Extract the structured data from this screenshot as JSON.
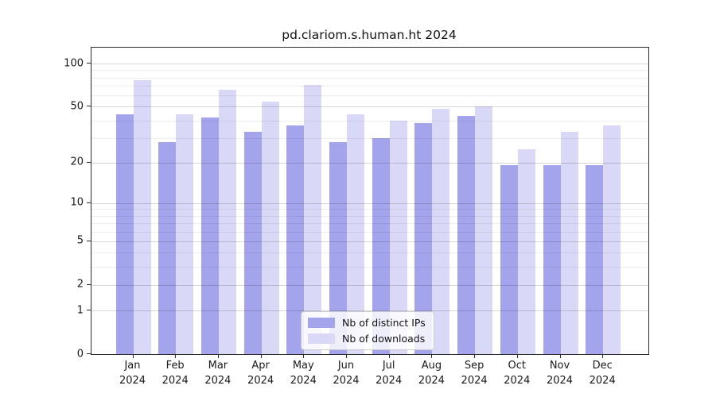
{
  "title": "pd.clariom.s.human.ht 2024",
  "legend": {
    "items": [
      {
        "label": "Nb of distinct IPs",
        "color": "#a4a4ec"
      },
      {
        "label": "Nb of downloads",
        "color": "#d9d9f7"
      }
    ]
  },
  "colors": {
    "bar_dark": "#a4a4ec",
    "bar_light": "#d9d9f7",
    "spine": "#2b2b2b"
  },
  "chart_data": {
    "type": "bar",
    "title": "pd.clariom.s.human.ht 2024",
    "categories": [
      "Jan 2024",
      "Feb 2024",
      "Mar 2024",
      "Apr 2024",
      "May 2024",
      "Jun 2024",
      "Jul 2024",
      "Aug 2024",
      "Sep 2024",
      "Oct 2024",
      "Nov 2024",
      "Dec 2024"
    ],
    "series": [
      {
        "name": "Nb of distinct IPs",
        "color": "#a4a4ec",
        "values": [
          44,
          28,
          42,
          33,
          37,
          28,
          30,
          38,
          43,
          19,
          19,
          19
        ]
      },
      {
        "name": "Nb of downloads",
        "color": "#d9d9f7",
        "values": [
          77,
          44,
          66,
          54,
          71,
          44,
          40,
          48,
          50,
          25,
          33,
          37
        ]
      }
    ],
    "xlabel": "",
    "ylabel": "",
    "yscale": "log1p",
    "ylim": [
      0,
      129
    ],
    "yticks": [
      0,
      1,
      2,
      5,
      10,
      20,
      50,
      100
    ],
    "minor_gridlines": [
      3,
      4,
      6,
      7,
      8,
      9,
      30,
      40,
      60,
      70,
      80,
      90
    ],
    "grid": true,
    "legend_position": "lower center"
  }
}
